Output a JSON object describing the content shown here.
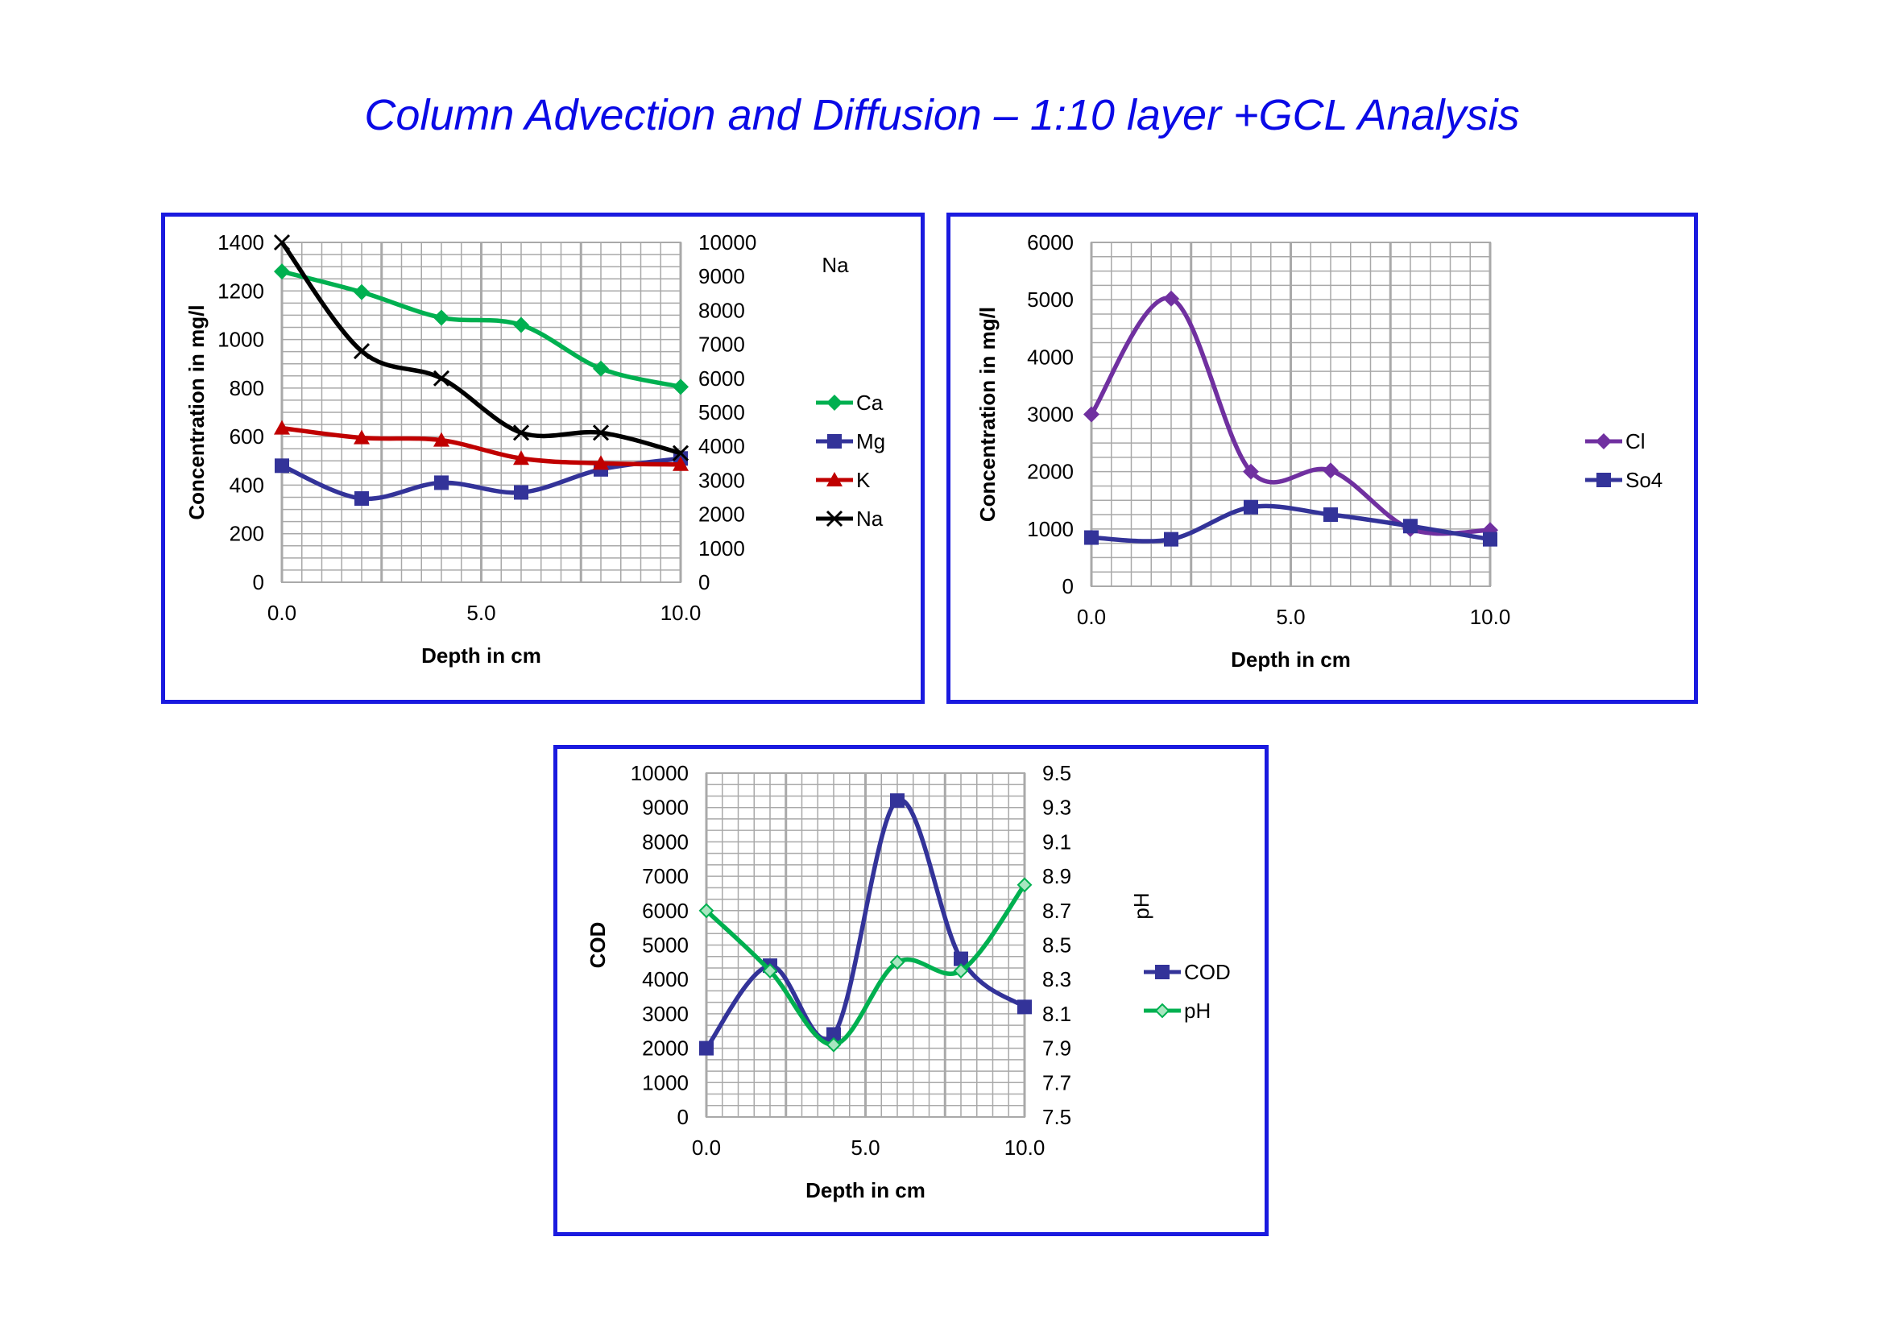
{
  "title": "Column Advection and Diffusion – 1:10 layer +GCL Analysis",
  "colors": {
    "title": "#0a0ae6",
    "frame": "#1a1adf",
    "grid": "#a9a9a9"
  },
  "chart_data": [
    {
      "type": "line",
      "x": [
        0,
        2,
        4,
        6,
        8,
        10
      ],
      "xlabel": "Depth in cm",
      "ylabel": "Concentration in mg/l",
      "y2label": "Na",
      "xlim": [
        0,
        10
      ],
      "xticks": [
        "0.0",
        "5.0",
        "10.0"
      ],
      "ylim": [
        0,
        1400
      ],
      "yticks": [
        "0",
        "200",
        "400",
        "600",
        "800",
        "1000",
        "1200",
        "1400"
      ],
      "y2lim": [
        0,
        10000
      ],
      "y2ticks": [
        "0",
        "1000",
        "2000",
        "3000",
        "4000",
        "5000",
        "6000",
        "7000",
        "8000",
        "9000",
        "10000"
      ],
      "grid": true,
      "legend_position": "right",
      "series": [
        {
          "name": "Ca",
          "values": [
            1280,
            1195,
            1090,
            1060,
            880,
            805
          ],
          "axis": "left",
          "color": "#00b050",
          "marker": "diamond"
        },
        {
          "name": "Mg",
          "values": [
            480,
            345,
            410,
            370,
            465,
            510
          ],
          "axis": "left",
          "color": "#333399",
          "marker": "square"
        },
        {
          "name": "K",
          "values": [
            635,
            595,
            585,
            510,
            490,
            485
          ],
          "axis": "left",
          "color": "#c00000",
          "marker": "triangle"
        },
        {
          "name": "Na",
          "values": [
            10000,
            6800,
            6000,
            4400,
            4400,
            3800
          ],
          "axis": "right",
          "color": "#000000",
          "marker": "x"
        }
      ]
    },
    {
      "type": "line",
      "x": [
        0,
        2,
        4,
        6,
        8,
        10
      ],
      "xlabel": "Depth in cm",
      "ylabel": "Concentration in mg/l",
      "xlim": [
        0,
        10
      ],
      "xticks": [
        "0.0",
        "5.0",
        "10.0"
      ],
      "ylim": [
        0,
        6000
      ],
      "yticks": [
        "0",
        "1000",
        "2000",
        "3000",
        "4000",
        "5000",
        "6000"
      ],
      "grid": true,
      "legend_position": "right",
      "series": [
        {
          "name": "Cl",
          "values": [
            3000,
            5020,
            2000,
            2020,
            1000,
            980
          ],
          "axis": "left",
          "color": "#7030a0",
          "marker": "diamond"
        },
        {
          "name": "So4",
          "values": [
            850,
            820,
            1380,
            1250,
            1050,
            820
          ],
          "axis": "left",
          "color": "#333399",
          "marker": "square"
        }
      ]
    },
    {
      "type": "line",
      "x": [
        0,
        2,
        4,
        6,
        8,
        10
      ],
      "xlabel": "Depth in cm",
      "ylabel": "COD",
      "y2label": "pH",
      "xlim": [
        0,
        10
      ],
      "xticks": [
        "0.0",
        "5.0",
        "10.0"
      ],
      "ylim": [
        0,
        10000
      ],
      "yticks": [
        "0",
        "1000",
        "2000",
        "3000",
        "4000",
        "5000",
        "6000",
        "7000",
        "8000",
        "9000",
        "10000"
      ],
      "y2lim": [
        7.5,
        9.5
      ],
      "y2ticks": [
        "7.5",
        "7.7",
        "7.9",
        "8.1",
        "8.3",
        "8.5",
        "8.7",
        "8.9",
        "9.1",
        "9.3",
        "9.5"
      ],
      "grid": true,
      "legend_position": "right",
      "series": [
        {
          "name": "COD",
          "values": [
            2000,
            4400,
            2400,
            9200,
            4600,
            3200
          ],
          "axis": "left",
          "color": "#333399",
          "marker": "square"
        },
        {
          "name": "pH",
          "values": [
            8.7,
            8.35,
            7.92,
            8.4,
            8.35,
            8.85
          ],
          "axis": "right",
          "color": "#00b050",
          "marker": "diamond-light"
        }
      ]
    }
  ]
}
